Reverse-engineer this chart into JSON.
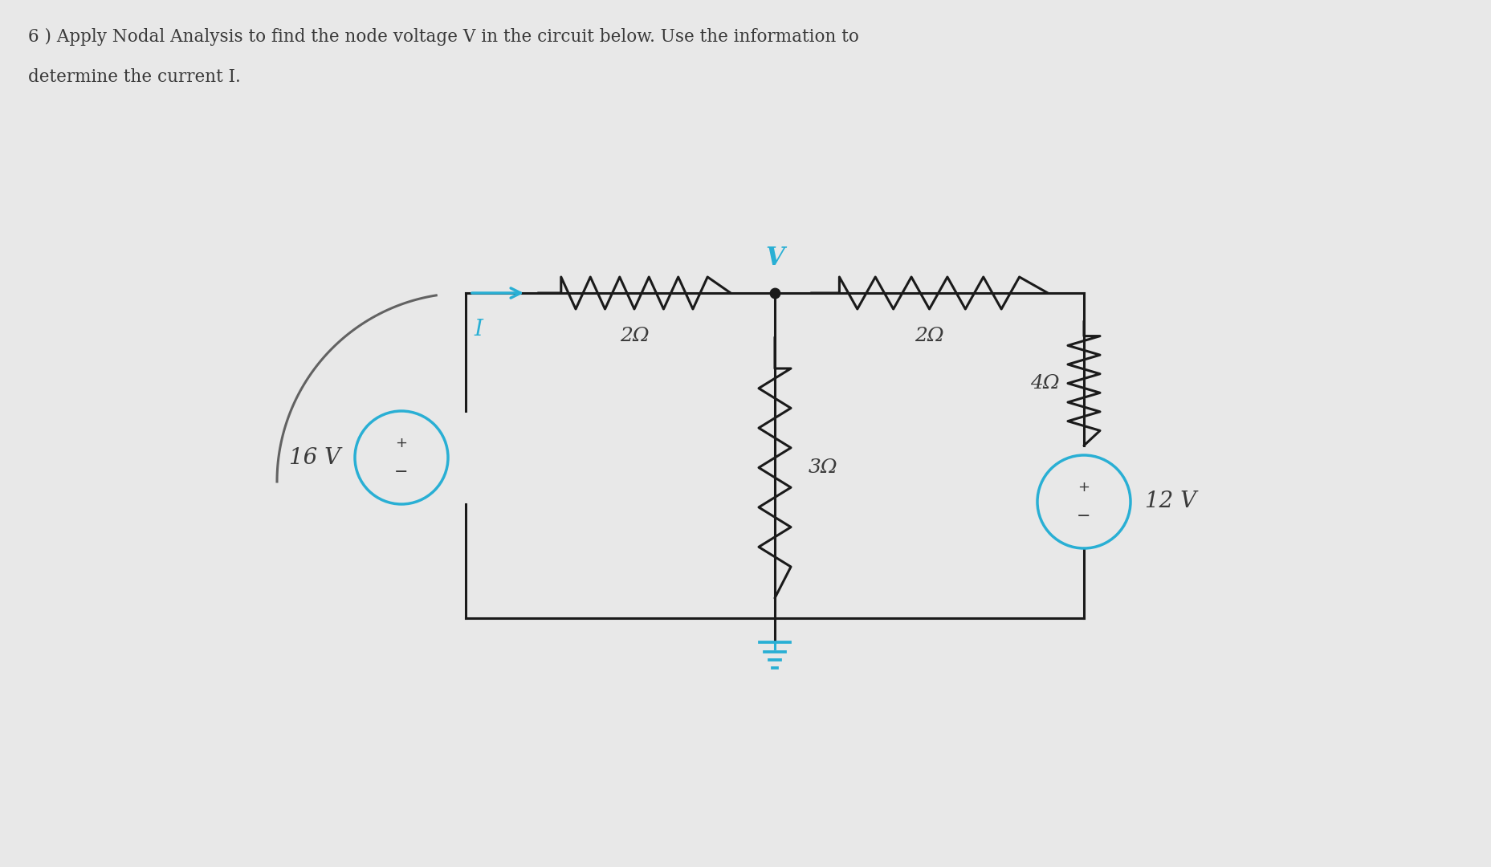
{
  "title_line1": "6 ) Apply Nodal Analysis to find the node voltage V in the circuit below. Use the information to",
  "title_line2": "determine the current I.",
  "bg_color": "#e8e8e8",
  "wire_color": "#1a1a1a",
  "cyan_color": "#29afd4",
  "text_color": "#3a3a3a",
  "label_16V": "16 V",
  "label_12V": "12 V",
  "label_2ohm_left": "2Ω",
  "label_2ohm_right": "2Ω",
  "label_3ohm": "3Ω",
  "label_4ohm": "4Ω",
  "label_I": "I",
  "label_V": "V",
  "figsize": [
    18.58,
    10.8
  ],
  "dpi": 100
}
